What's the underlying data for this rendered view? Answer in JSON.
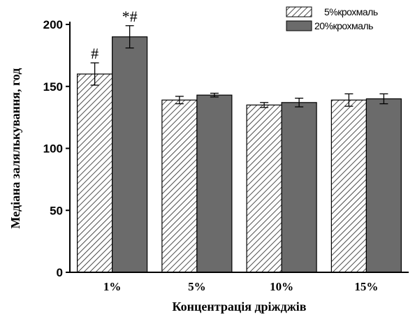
{
  "chart_data": {
    "type": "bar",
    "title": "",
    "xlabel": "Концентрація дріжджів",
    "ylabel": "Медіана залялькування, год",
    "ylim": [
      0,
      200
    ],
    "yticks": [
      0,
      50,
      100,
      150,
      200
    ],
    "categories": [
      "1%",
      "5%",
      "10%",
      "15%"
    ],
    "series": [
      {
        "name": "5%крохмаль",
        "values": [
          160,
          139,
          135,
          139
        ],
        "errors": [
          9,
          3,
          2,
          5
        ],
        "annotations": [
          "#",
          "",
          "",
          ""
        ],
        "style": "hatched",
        "color": "#ffffff"
      },
      {
        "name": "20%крохмаль",
        "values": [
          190,
          143,
          137,
          140
        ],
        "errors": [
          9,
          1.5,
          3.5,
          4
        ],
        "annotations": [
          "*#",
          "",
          "",
          ""
        ],
        "style": "solid",
        "color": "#6b6b6b"
      }
    ],
    "legend_position": "top-right",
    "grid": false
  }
}
